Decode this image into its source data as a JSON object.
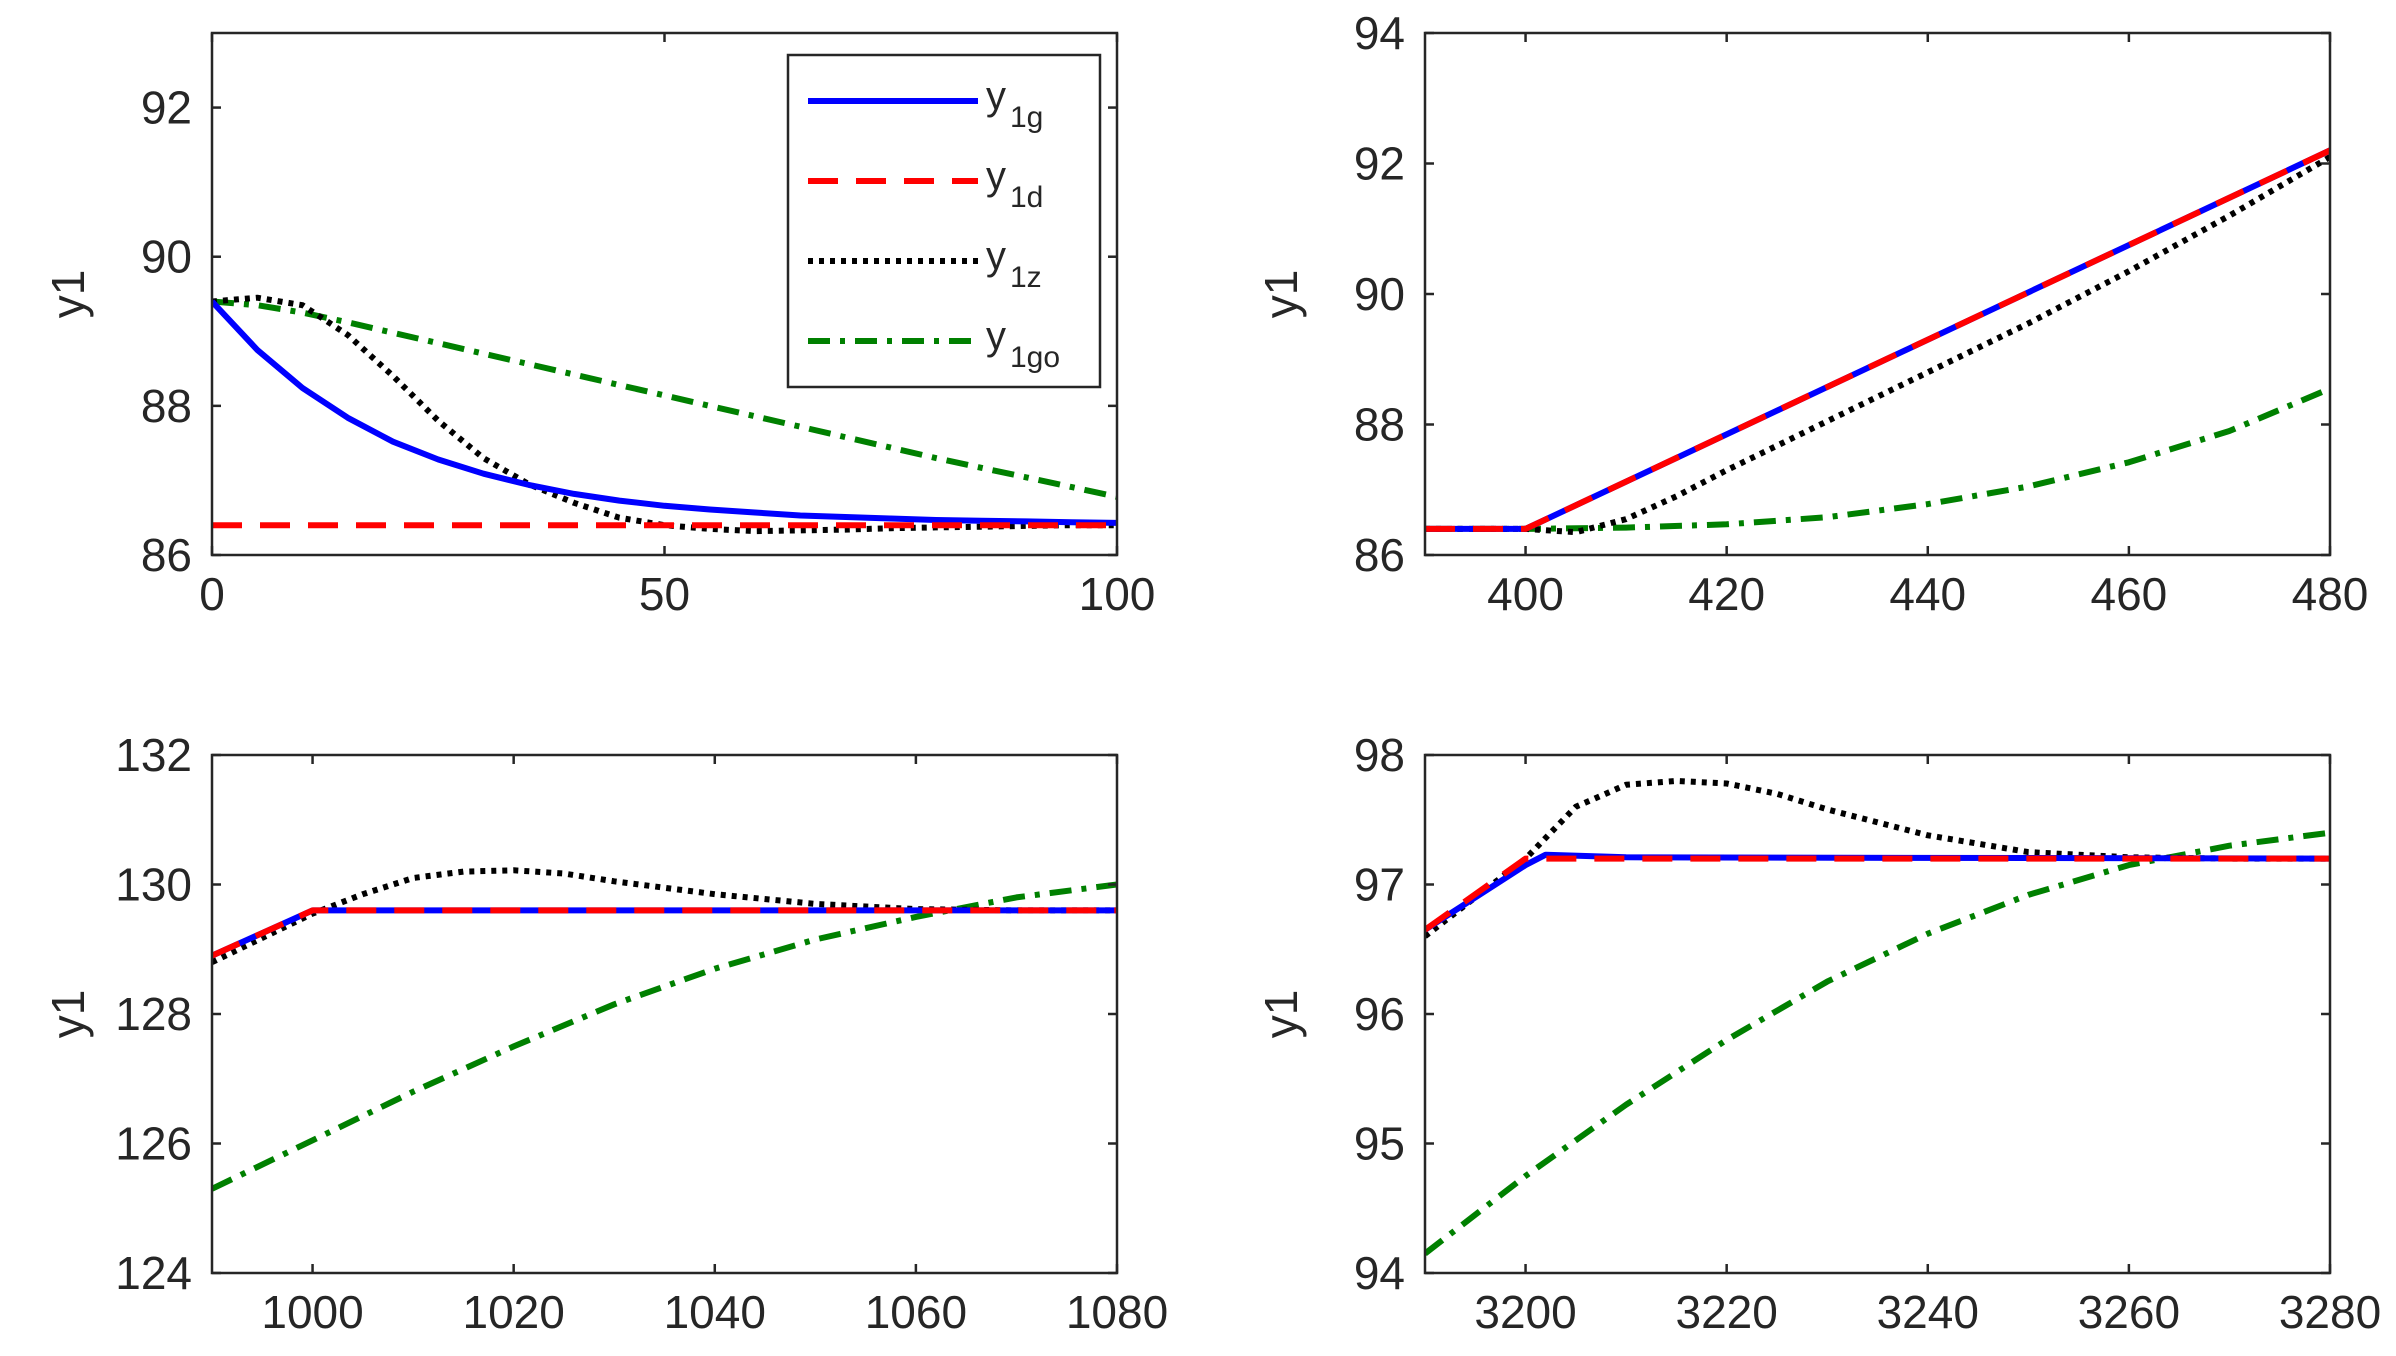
{
  "chart_data": [
    {
      "type": "line",
      "position": "top-left",
      "xlim": [
        0,
        100
      ],
      "ylim": [
        86,
        93
      ],
      "xticks": [
        0,
        50,
        100
      ],
      "yticks": [
        86,
        88,
        90,
        92
      ],
      "xtick_labels": [
        "0",
        "50",
        "100"
      ],
      "ytick_labels": [
        "86",
        "88",
        "90",
        "92"
      ],
      "ylabel": "y1",
      "legend": true,
      "series": [
        {
          "key": "y1g",
          "color": "#0000ff",
          "style": "solid",
          "x": [
            0,
            5,
            10,
            15,
            20,
            25,
            30,
            35,
            40,
            45,
            50,
            55,
            60,
            65,
            70,
            75,
            80,
            85,
            90,
            95,
            100
          ],
          "y": [
            89.4,
            88.75,
            88.24,
            87.84,
            87.52,
            87.28,
            87.09,
            86.94,
            86.82,
            86.73,
            86.66,
            86.61,
            86.57,
            86.53,
            86.51,
            86.49,
            86.47,
            86.46,
            86.45,
            86.44,
            86.43
          ]
        },
        {
          "key": "y1d",
          "color": "#ff0000",
          "style": "dashed",
          "x": [
            0,
            100
          ],
          "y": [
            86.4,
            86.4
          ]
        },
        {
          "key": "y1z",
          "color": "#000000",
          "style": "dotted",
          "x": [
            0,
            5,
            10,
            15,
            20,
            25,
            30,
            35,
            40,
            45,
            50,
            55,
            60,
            65,
            70,
            75,
            80,
            85,
            90,
            95,
            100
          ],
          "y": [
            89.4,
            89.45,
            89.35,
            88.95,
            88.4,
            87.8,
            87.3,
            86.95,
            86.7,
            86.5,
            86.4,
            86.35,
            86.32,
            86.33,
            86.34,
            86.36,
            86.37,
            86.38,
            86.39,
            86.4,
            86.4
          ]
        },
        {
          "key": "y1go",
          "color": "#008000",
          "style": "dashdot",
          "x": [
            0,
            5,
            10,
            15,
            20,
            25,
            30,
            35,
            40,
            45,
            50,
            55,
            60,
            65,
            70,
            75,
            80,
            85,
            90,
            95,
            100
          ],
          "y": [
            89.4,
            89.35,
            89.25,
            89.12,
            88.98,
            88.84,
            88.7,
            88.56,
            88.42,
            88.28,
            88.14,
            88.0,
            87.86,
            87.72,
            87.58,
            87.44,
            87.3,
            87.17,
            87.04,
            86.91,
            86.78
          ]
        }
      ]
    },
    {
      "type": "line",
      "position": "top-right",
      "xlim": [
        390,
        480
      ],
      "ylim": [
        86,
        94
      ],
      "xticks": [
        400,
        420,
        440,
        460,
        480
      ],
      "yticks": [
        86,
        88,
        90,
        92,
        94
      ],
      "xtick_labels": [
        "400",
        "420",
        "440",
        "460",
        "480"
      ],
      "ytick_labels": [
        "86",
        "88",
        "90",
        "92",
        "94"
      ],
      "ylabel": "y1",
      "legend": false,
      "series": [
        {
          "key": "y1g",
          "color": "#0000ff",
          "style": "solid",
          "x": [
            390,
            400,
            480
          ],
          "y": [
            86.4,
            86.4,
            92.2
          ]
        },
        {
          "key": "y1d",
          "color": "#ff0000",
          "style": "dashed",
          "x": [
            390,
            400,
            480
          ],
          "y": [
            86.4,
            86.4,
            92.2
          ]
        },
        {
          "key": "y1z",
          "color": "#000000",
          "style": "dotted",
          "x": [
            390,
            400,
            405,
            410,
            415,
            420,
            430,
            440,
            450,
            460,
            470,
            480
          ],
          "y": [
            86.4,
            86.4,
            86.35,
            86.55,
            86.9,
            87.3,
            88.05,
            88.8,
            89.55,
            90.35,
            91.2,
            92.1
          ]
        },
        {
          "key": "y1go",
          "color": "#008000",
          "style": "dashdot",
          "x": [
            390,
            400,
            410,
            420,
            430,
            440,
            450,
            460,
            470,
            480
          ],
          "y": [
            86.4,
            86.4,
            86.42,
            86.47,
            86.58,
            86.78,
            87.05,
            87.42,
            87.9,
            88.55
          ]
        }
      ]
    },
    {
      "type": "line",
      "position": "bottom-left",
      "xlim": [
        990,
        1080
      ],
      "ylim": [
        124,
        132
      ],
      "xticks": [
        1000,
        1020,
        1040,
        1060,
        1080
      ],
      "yticks": [
        124,
        126,
        128,
        130,
        132
      ],
      "xtick_labels": [
        "1000",
        "1020",
        "1040",
        "1060",
        "1080"
      ],
      "ytick_labels": [
        "124",
        "126",
        "128",
        "130",
        "132"
      ],
      "ylabel": "y1",
      "legend": false,
      "series": [
        {
          "key": "y1g",
          "color": "#0000ff",
          "style": "solid",
          "x": [
            990,
            1000,
            1080
          ],
          "y": [
            128.9,
            129.6,
            129.6
          ]
        },
        {
          "key": "y1d",
          "color": "#ff0000",
          "style": "dashed",
          "x": [
            990,
            1000,
            1080
          ],
          "y": [
            128.9,
            129.6,
            129.6
          ]
        },
        {
          "key": "y1z",
          "color": "#000000",
          "style": "dotted",
          "x": [
            990,
            1000,
            1005,
            1010,
            1015,
            1020,
            1025,
            1030,
            1040,
            1050,
            1060,
            1070,
            1080
          ],
          "y": [
            128.8,
            129.55,
            129.85,
            130.1,
            130.2,
            130.22,
            130.17,
            130.05,
            129.85,
            129.7,
            129.62,
            129.6,
            129.6
          ]
        },
        {
          "key": "y1go",
          "color": "#008000",
          "style": "dashdot",
          "x": [
            990,
            1000,
            1010,
            1020,
            1030,
            1040,
            1050,
            1060,
            1070,
            1080
          ],
          "y": [
            125.3,
            126.05,
            126.8,
            127.5,
            128.15,
            128.7,
            129.15,
            129.5,
            129.8,
            130.0
          ]
        }
      ]
    },
    {
      "type": "line",
      "position": "bottom-right",
      "xlim": [
        3190,
        3280
      ],
      "ylim": [
        94,
        98
      ],
      "xticks": [
        3200,
        3220,
        3240,
        3260,
        3280
      ],
      "yticks": [
        94,
        95,
        96,
        97,
        98
      ],
      "xtick_labels": [
        "3200",
        "3220",
        "3240",
        "3260",
        "3280"
      ],
      "ytick_labels": [
        "94",
        "95",
        "96",
        "97",
        "98"
      ],
      "ylabel": "y1",
      "legend": false,
      "series": [
        {
          "key": "y1g",
          "color": "#0000ff",
          "style": "solid",
          "x": [
            3190,
            3200,
            3202,
            3210,
            3280
          ],
          "y": [
            96.65,
            97.15,
            97.23,
            97.21,
            97.2
          ]
        },
        {
          "key": "y1d",
          "color": "#ff0000",
          "style": "dashed",
          "x": [
            3190,
            3200,
            3280
          ],
          "y": [
            96.65,
            97.2,
            97.2
          ]
        },
        {
          "key": "y1z",
          "color": "#000000",
          "style": "dotted",
          "x": [
            3190,
            3200,
            3205,
            3210,
            3215,
            3220,
            3225,
            3230,
            3240,
            3250,
            3260,
            3270,
            3280
          ],
          "y": [
            96.6,
            97.2,
            97.6,
            97.77,
            97.8,
            97.78,
            97.7,
            97.58,
            97.38,
            97.25,
            97.21,
            97.2,
            97.2
          ]
        },
        {
          "key": "y1go",
          "color": "#008000",
          "style": "dashdot",
          "x": [
            3190,
            3200,
            3210,
            3220,
            3230,
            3240,
            3250,
            3260,
            3270,
            3280
          ],
          "y": [
            94.15,
            94.75,
            95.3,
            95.8,
            96.25,
            96.62,
            96.92,
            97.15,
            97.3,
            97.4
          ]
        }
      ]
    }
  ],
  "legend_items": [
    {
      "key": "y1g",
      "main": "y",
      "sub": "1g",
      "color": "#0000ff",
      "style": "solid"
    },
    {
      "key": "y1d",
      "main": "y",
      "sub": "1d",
      "color": "#ff0000",
      "style": "dashed"
    },
    {
      "key": "y1z",
      "main": "y",
      "sub": "1z",
      "color": "#000000",
      "style": "dotted"
    },
    {
      "key": "y1go",
      "main": "y",
      "sub": "1go",
      "color": "#008000",
      "style": "dashdot"
    }
  ]
}
